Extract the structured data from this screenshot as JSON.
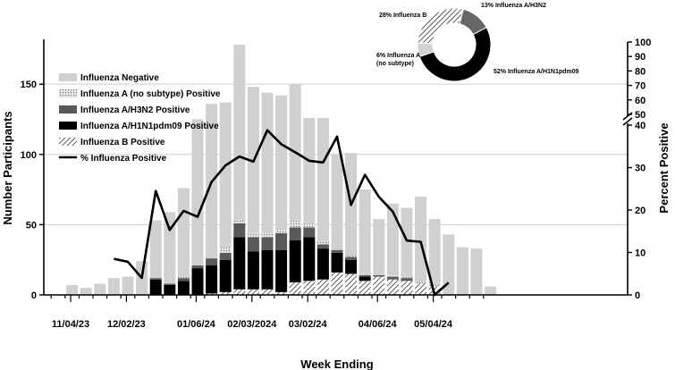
{
  "colors": {
    "negative": "#d0d0d0",
    "a_no_subtype": "#b8b8b8",
    "h3n2": "#595959",
    "h1n1": "#000000",
    "flu_b_hatch": "#333333",
    "gridline": "#cfcfcf",
    "line": "#000000"
  },
  "chart_data": [
    {
      "type": "bar",
      "stacked": true,
      "title": "",
      "xlabel": "Week Ending",
      "ylabel": "Number Participants",
      "y2label": "Percent Positive",
      "ylim": [
        0,
        180
      ],
      "yticks": [
        0,
        50,
        100,
        150
      ],
      "y2_lower_range": [
        0,
        40
      ],
      "y2_lower_ticks": [
        0,
        10,
        20,
        30,
        40
      ],
      "y2_upper_range": [
        50,
        100
      ],
      "y2_upper_ticks": [
        50,
        60,
        70,
        80,
        90,
        100
      ],
      "grid": true,
      "legend_position": "top-left",
      "x_tick_labels": [
        {
          "index": 0,
          "label": "11/04/23"
        },
        {
          "index": 4,
          "label": "12/02/23"
        },
        {
          "index": 9,
          "label": "01/06/24"
        },
        {
          "index": 13,
          "label": "02/03/2024"
        },
        {
          "index": 17,
          "label": "03/02/24"
        },
        {
          "index": 22,
          "label": "04/06/24"
        },
        {
          "index": 26,
          "label": "05/04/24"
        }
      ],
      "series": [
        {
          "name": "Influenza B Positive",
          "key": "flu_b",
          "values": [
            0,
            0,
            0,
            0,
            0,
            0,
            0,
            0,
            0,
            0,
            0,
            1,
            2,
            4,
            4,
            4,
            2,
            9,
            10,
            11,
            16,
            15,
            10,
            13,
            11,
            10,
            8,
            6,
            0,
            0,
            0,
            0
          ]
        },
        {
          "name": "Influenza A/H1N1pdm09 Positive",
          "key": "h1n1",
          "values": [
            0,
            0,
            0,
            0,
            0,
            0,
            0,
            11,
            7,
            10,
            19,
            20,
            23,
            37,
            27,
            28,
            30,
            30,
            31,
            22,
            14,
            10,
            3,
            0,
            0,
            0,
            0,
            0,
            0,
            0,
            0,
            0
          ]
        },
        {
          "name": "Influenza A/H3N2 Positive",
          "key": "h3n2",
          "values": [
            0,
            0,
            0,
            0,
            0,
            0,
            0,
            1,
            1,
            2,
            2,
            5,
            5,
            10,
            10,
            9,
            12,
            9,
            7,
            3,
            2,
            2,
            1,
            1,
            2,
            2,
            0,
            0,
            0,
            0,
            0,
            0
          ]
        },
        {
          "name": "Influenza A (no subtype) Positive",
          "key": "a_no_subtype",
          "values": [
            0,
            0,
            0,
            0,
            0,
            0,
            0,
            0,
            0,
            1,
            0,
            0,
            4,
            2,
            3,
            3,
            3,
            5,
            3,
            2,
            0,
            1,
            0,
            0,
            1,
            1,
            1,
            1,
            0,
            0,
            0,
            0
          ]
        },
        {
          "name": "Influenza Negative",
          "key": "negative",
          "values": [
            0,
            7,
            5,
            8,
            12,
            13,
            24,
            41,
            51,
            63,
            104,
            110,
            103,
            125,
            104,
            100,
            95,
            97,
            75,
            88,
            68,
            73,
            61,
            40,
            51,
            49,
            61,
            47,
            43,
            34,
            33,
            6
          ]
        }
      ],
      "line_series": {
        "name": "% Influenza Positive",
        "start_index": 4,
        "values": [
          8.5,
          7.8,
          4,
          24.5,
          15.3,
          19.8,
          18.4,
          26.6,
          30.5,
          32.6,
          31.4,
          38.8,
          35.5,
          33.6,
          31.6,
          31.2,
          37.3,
          21.2,
          28.3,
          23.1,
          19.6,
          12.8,
          12.5,
          0,
          2.9
        ]
      }
    },
    {
      "type": "pie",
      "donut": true,
      "slices": [
        {
          "label": "Influenza A/H3N2",
          "value": 13
        },
        {
          "label": "Influenza A/H1N1pdm09",
          "value": 52
        },
        {
          "label": "Influenza A (no subtype)",
          "value": 6
        },
        {
          "label": "Influenza B",
          "value": 28
        }
      ],
      "slice_labels": [
        "13%  Influenza A/H3N2",
        "52%  Influenza A/H1N1pdm09",
        "6%  Influenza A",
        "(no subtype)",
        "28%  Influenza B"
      ]
    }
  ]
}
